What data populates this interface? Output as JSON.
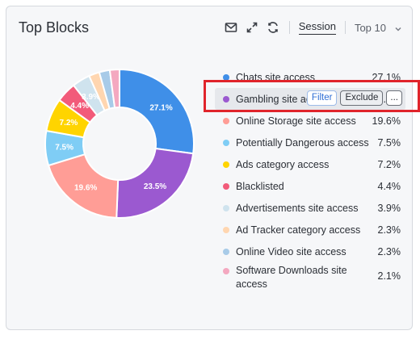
{
  "widget": {
    "title": "Top Blocks"
  },
  "toolbar": {
    "icons": [
      "mail-icon",
      "expand-icon",
      "refresh-icon"
    ],
    "session_label": "Session",
    "top_label": "Top 10"
  },
  "row_actions": {
    "filter": "Filter",
    "exclude": "Exclude",
    "more": "..."
  },
  "legend": [
    {
      "label": "Chats site access",
      "value": "27.1%",
      "color": "#3f8fe8"
    },
    {
      "label": "Gambling site access",
      "value": "23.5%",
      "color": "#9b59d0"
    },
    {
      "label": "Online Storage site access",
      "value": "19.6%",
      "color": "#ff9d96"
    },
    {
      "label": "Potentially Dangerous access",
      "value": "7.5%",
      "color": "#7fcdf5"
    },
    {
      "label": "Ads category access",
      "value": "7.2%",
      "color": "#ffd400"
    },
    {
      "label": "Blacklisted",
      "value": "4.4%",
      "color": "#f25b7a"
    },
    {
      "label": "Advertisements site access",
      "value": "3.9%",
      "color": "#cfe3ee"
    },
    {
      "label": "Ad Tracker category access",
      "value": "2.3%",
      "color": "#ffd6b0"
    },
    {
      "label": "Online Video site access",
      "value": "2.3%",
      "color": "#a8cbe8"
    },
    {
      "label": "Software Downloads site access",
      "value": "2.1%",
      "color": "#f4a8c0"
    }
  ],
  "chart_data": {
    "type": "pie",
    "categories": [
      "Chats site access",
      "Gambling site access",
      "Online Storage site access",
      "Potentially Dangerous access",
      "Ads category access",
      "Blacklisted",
      "Advertisements site access",
      "Ad Tracker category access",
      "Online Video site access",
      "Software Downloads site access"
    ],
    "values": [
      27.1,
      23.5,
      19.6,
      7.5,
      7.2,
      4.4,
      3.9,
      2.3,
      2.3,
      2.1
    ],
    "colors": [
      "#3f8fe8",
      "#9b59d0",
      "#ff9d96",
      "#7fcdf5",
      "#ffd400",
      "#f25b7a",
      "#cfe3ee",
      "#ffd6b0",
      "#a8cbe8",
      "#f4a8c0"
    ],
    "data_labels": [
      "27.1%",
      "23.5%",
      "19.6%",
      "7.5%",
      "7.2%",
      "4.4%",
      "3.9%",
      "",
      "",
      ""
    ],
    "donut": true
  }
}
